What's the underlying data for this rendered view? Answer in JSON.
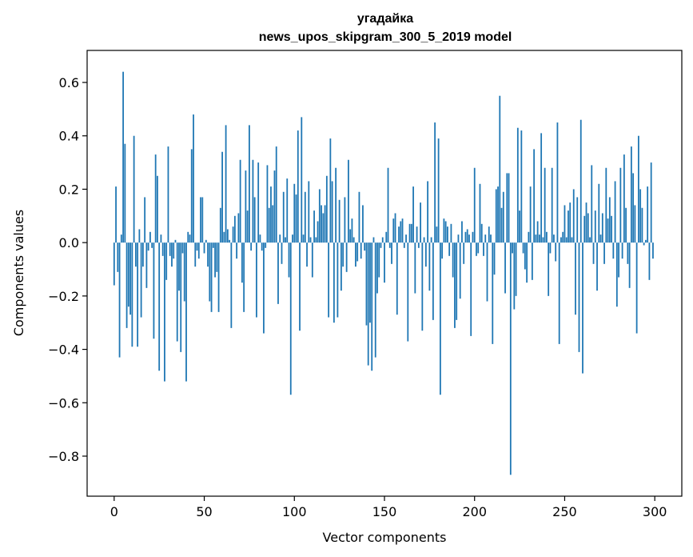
{
  "chart_data": {
    "type": "bar",
    "title_line1": "угадайка",
    "title_line2": "news_upos_skipgram_300_5_2019 model",
    "xlabel": "Vector components",
    "ylabel": "Components values",
    "xlim": [
      -15,
      315
    ],
    "ylim": [
      -0.95,
      0.72
    ],
    "x_ticks": [
      0,
      50,
      100,
      150,
      200,
      250,
      300
    ],
    "x_tick_labels": [
      "0",
      "50",
      "100",
      "150",
      "200",
      "250",
      "300"
    ],
    "y_ticks": [
      -0.8,
      -0.6,
      -0.4,
      -0.2,
      0.0,
      0.2,
      0.4,
      0.6
    ],
    "y_tick_labels": [
      "−0.8",
      "−0.6",
      "−0.4",
      "−0.2",
      "0.0",
      "0.2",
      "0.4",
      "0.6"
    ],
    "bar_color": "#1f77b4",
    "values": [
      -0.16,
      0.21,
      -0.11,
      -0.43,
      0.03,
      0.64,
      0.37,
      -0.32,
      -0.24,
      -0.27,
      -0.39,
      0.4,
      -0.09,
      -0.39,
      0.05,
      -0.28,
      -0.09,
      0.17,
      -0.17,
      -0.03,
      0.04,
      -0.02,
      -0.36,
      0.33,
      0.25,
      -0.48,
      0.03,
      -0.05,
      -0.52,
      -0.14,
      0.36,
      -0.05,
      -0.09,
      -0.06,
      0.01,
      -0.37,
      -0.18,
      -0.41,
      -0.04,
      -0.22,
      -0.52,
      0.04,
      0.03,
      0.35,
      0.48,
      -0.09,
      -0.03,
      -0.06,
      0.17,
      0.17,
      -0.04,
      0.01,
      -0.09,
      -0.22,
      -0.26,
      -0.02,
      -0.13,
      -0.11,
      -0.26,
      0.13,
      0.34,
      0.04,
      0.44,
      0.05,
      0.01,
      -0.32,
      0.06,
      0.1,
      -0.06,
      0.11,
      0.31,
      -0.15,
      -0.26,
      0.27,
      0.12,
      0.44,
      -0.03,
      0.31,
      0.17,
      -0.28,
      0.3,
      0.03,
      -0.03,
      -0.34,
      -0.02,
      0.29,
      0.13,
      0.21,
      0.14,
      0.27,
      0.36,
      -0.23,
      0.03,
      -0.08,
      0.19,
      0.02,
      0.24,
      -0.13,
      -0.57,
      0.03,
      0.22,
      0.18,
      0.42,
      -0.33,
      0.47,
      0.03,
      0.19,
      -0.09,
      0.23,
      0.02,
      -0.13,
      0.12,
      0.02,
      0.08,
      0.2,
      0.14,
      0.11,
      0.14,
      0.25,
      -0.28,
      0.39,
      0.23,
      -0.3,
      0.28,
      -0.28,
      0.16,
      -0.18,
      -0.09,
      0.17,
      -0.11,
      0.31,
      0.05,
      0.09,
      0.02,
      -0.09,
      -0.07,
      0.19,
      -0.06,
      0.14,
      -0.03,
      -0.31,
      -0.46,
      -0.3,
      -0.48,
      0.02,
      -0.43,
      -0.19,
      -0.13,
      -0.02,
      0.02,
      -0.15,
      0.04,
      0.28,
      -0.02,
      -0.08,
      0.09,
      0.11,
      -0.27,
      0.06,
      0.08,
      0.09,
      -0.02,
      0.03,
      -0.37,
      0.07,
      0.07,
      0.21,
      -0.19,
      0.06,
      -0.02,
      0.15,
      -0.33,
      0.02,
      -0.09,
      0.23,
      -0.18,
      0.02,
      -0.29,
      0.45,
      0.06,
      0.39,
      -0.57,
      -0.06,
      0.09,
      0.08,
      0.06,
      -0.05,
      0.07,
      -0.13,
      -0.32,
      -0.29,
      0.03,
      -0.21,
      0.08,
      -0.08,
      0.04,
      0.05,
      0.03,
      -0.35,
      0.04,
      0.28,
      -0.05,
      -0.04,
      0.22,
      0.07,
      -0.05,
      0.03,
      -0.22,
      0.06,
      0.03,
      -0.38,
      -0.12,
      0.2,
      0.21,
      0.55,
      0.13,
      0.19,
      -0.19,
      0.26,
      0.26,
      -0.87,
      -0.04,
      -0.25,
      -0.2,
      0.43,
      0.12,
      0.42,
      -0.04,
      -0.1,
      -0.15,
      0.04,
      0.21,
      -0.14,
      0.35,
      0.03,
      0.08,
      0.03,
      0.41,
      0.02,
      0.28,
      0.04,
      -0.2,
      -0.04,
      0.28,
      0.03,
      -0.07,
      0.45,
      -0.38,
      0.02,
      0.04,
      0.14,
      0.02,
      0.12,
      0.15,
      0.02,
      0.2,
      -0.27,
      0.17,
      -0.41,
      0.46,
      -0.49,
      0.1,
      0.15,
      0.11,
      0.02,
      0.29,
      -0.08,
      0.12,
      -0.18,
      0.22,
      0.03,
      0.11,
      -0.08,
      0.28,
      0.09,
      0.17,
      0.1,
      -0.06,
      0.23,
      -0.24,
      -0.13,
      0.28,
      -0.06,
      0.33,
      0.13,
      -0.08,
      -0.17,
      0.36,
      0.26,
      0.14,
      -0.34,
      0.4,
      0.2,
      0.13,
      -0.01,
      0.01,
      0.21,
      -0.14,
      0.3,
      -0.06
    ]
  }
}
